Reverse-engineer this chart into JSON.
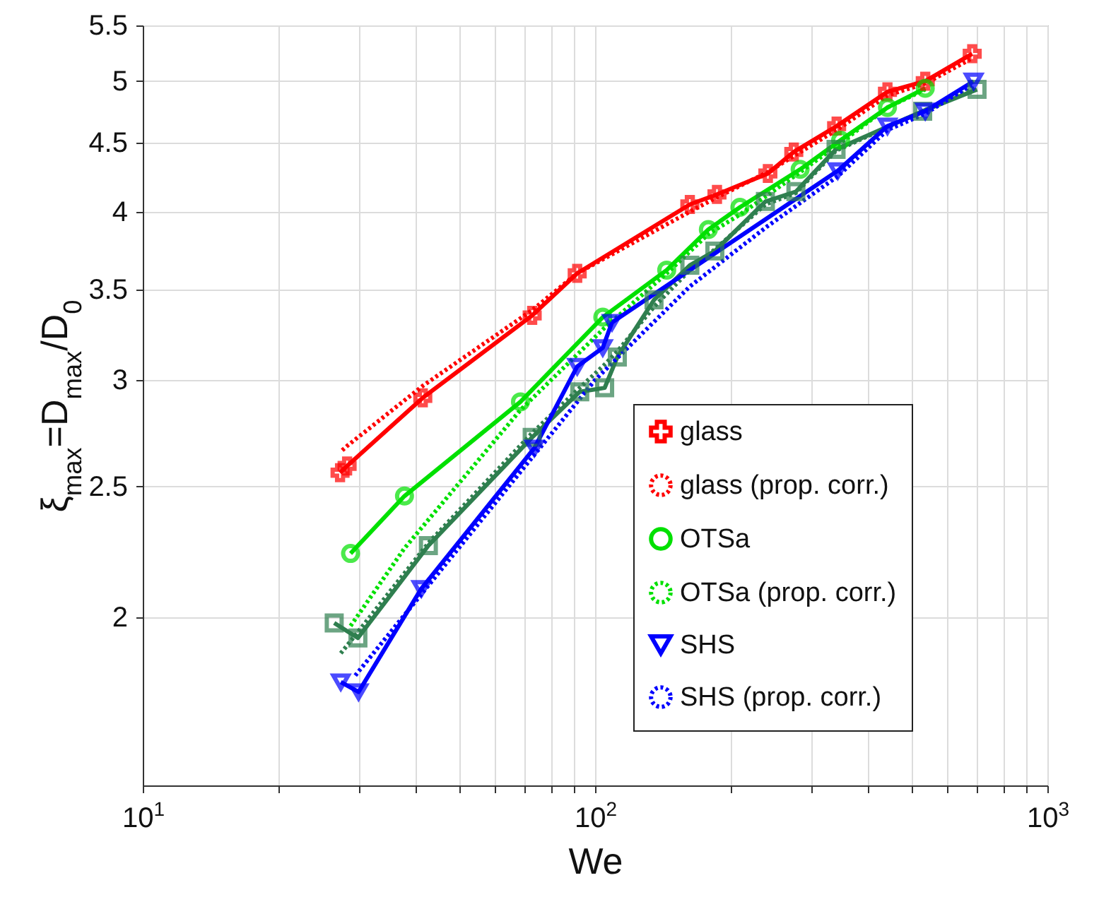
{
  "chart_data": {
    "type": "line",
    "xlabel": "We",
    "ylabel": "ξ$_{max}$=D$_{max}$/D$_{0}$",
    "xlim": [
      10,
      1000
    ],
    "ylim": [
      1.5,
      5.5
    ],
    "xticks": [
      {
        "value": 10,
        "label": "10$^{1}$"
      },
      {
        "value": 20,
        "label": null
      },
      {
        "value": 30,
        "label": null
      },
      {
        "value": 40,
        "label": null
      },
      {
        "value": 50,
        "label": null
      },
      {
        "value": 60,
        "label": null
      },
      {
        "value": 70,
        "label": null
      },
      {
        "value": 80,
        "label": null
      },
      {
        "value": 90,
        "label": null
      },
      {
        "value": 100,
        "label": "10$^{2}$"
      },
      {
        "value": 200,
        "label": null
      },
      {
        "value": 300,
        "label": null
      },
      {
        "value": 400,
        "label": null
      },
      {
        "value": 500,
        "label": null
      },
      {
        "value": 600,
        "label": null
      },
      {
        "value": 700,
        "label": null
      },
      {
        "value": 800,
        "label": null
      },
      {
        "value": 900,
        "label": null
      },
      {
        "value": 1000,
        "label": "10$^{3}$"
      }
    ],
    "yticks": [
      2,
      2.5,
      3,
      3.5,
      4,
      4.5,
      5,
      5.5
    ],
    "log": "xy",
    "grid": true,
    "legend": "bottom right",
    "series": [
      {
        "name": "glass",
        "color": "#ff0000",
        "marker": "cross",
        "line_style": "solid",
        "x": [
          27.3,
          28.3,
          41.6,
          72.6,
          91.3,
          162,
          186,
          241,
          275,
          342,
          443,
          537,
          682
        ],
        "values": [
          2.56,
          2.59,
          2.91,
          3.35,
          3.6,
          4.05,
          4.12,
          4.27,
          4.43,
          4.63,
          4.91,
          5.0,
          5.24
        ]
      },
      {
        "name": "glass (prop. corr.)",
        "color": "#ff0000",
        "marker": "none",
        "line_style": "dotted",
        "x": [
          27.6,
          28.3,
          41.6,
          72.6,
          91.3,
          162,
          186,
          241,
          275,
          342,
          443,
          537,
          682
        ],
        "values": [
          2.66,
          2.68,
          2.97,
          3.38,
          3.6,
          4.0,
          4.1,
          4.28,
          4.4,
          4.6,
          4.88,
          4.98,
          5.2
        ]
      },
      {
        "name": "OTSa",
        "color": "#00e000",
        "marker": "circle",
        "line_style": "solid",
        "x": [
          28.8,
          37.9,
          68.4,
          104,
          144,
          178,
          209,
          284,
          349,
          443,
          537
        ],
        "values": [
          2.23,
          2.46,
          2.89,
          3.34,
          3.62,
          3.88,
          4.03,
          4.3,
          4.52,
          4.78,
          4.94
        ]
      },
      {
        "name": "OTSa (prop. corr.)",
        "color": "#00e000",
        "marker": "none",
        "line_style": "dotted",
        "x": [
          28.8,
          37.9,
          68.4,
          104,
          144,
          178,
          209,
          284,
          349,
          443,
          537
        ],
        "values": [
          1.97,
          2.25,
          2.85,
          3.27,
          3.6,
          3.85,
          3.98,
          4.28,
          4.5,
          4.78,
          4.93
        ]
      },
      {
        "color": "#2f7f4f",
        "marker": "square",
        "line_style": "solid",
        "x": [
          26.5,
          29.9,
          42.8,
          72.6,
          92.5,
          105,
          112,
          135,
          162,
          184,
          238,
          278,
          341,
          530,
          699
        ],
        "values": [
          1.98,
          1.93,
          2.26,
          2.72,
          2.94,
          2.96,
          3.12,
          3.44,
          3.65,
          3.74,
          4.07,
          4.14,
          4.45,
          4.75,
          4.93
        ]
      },
      {
        "color": "#2f7f4f",
        "marker": "none",
        "line_style": "dotted",
        "x": [
          27.4,
          29.9,
          42.8,
          72.6,
          92.5,
          105,
          112,
          135,
          162,
          184,
          238,
          278,
          341,
          530,
          699
        ],
        "values": [
          1.88,
          1.95,
          2.27,
          2.74,
          2.96,
          3.08,
          3.15,
          3.4,
          3.62,
          3.75,
          4.05,
          4.13,
          4.44,
          4.75,
          4.95
        ]
      },
      {
        "name": "SHS",
        "color": "#0000ff",
        "marker": "triangle",
        "line_style": "solid",
        "x": [
          27.4,
          30,
          41.3,
          73.4,
          91.3,
          104,
          109,
          344,
          443,
          537,
          687
        ],
        "values": [
          1.79,
          1.76,
          2.1,
          2.67,
          3.07,
          3.17,
          3.31,
          4.29,
          4.63,
          4.75,
          5.0
        ]
      },
      {
        "name": "SHS (prop. corr.)",
        "color": "#0000ff",
        "marker": "none",
        "line_style": "dotted",
        "x": [
          29.5,
          41.3,
          73.4,
          100,
          162,
          240,
          344,
          443,
          537,
          687
        ],
        "values": [
          1.81,
          2.08,
          2.64,
          3.0,
          3.52,
          3.9,
          4.25,
          4.6,
          4.73,
          4.98
        ]
      }
    ]
  }
}
